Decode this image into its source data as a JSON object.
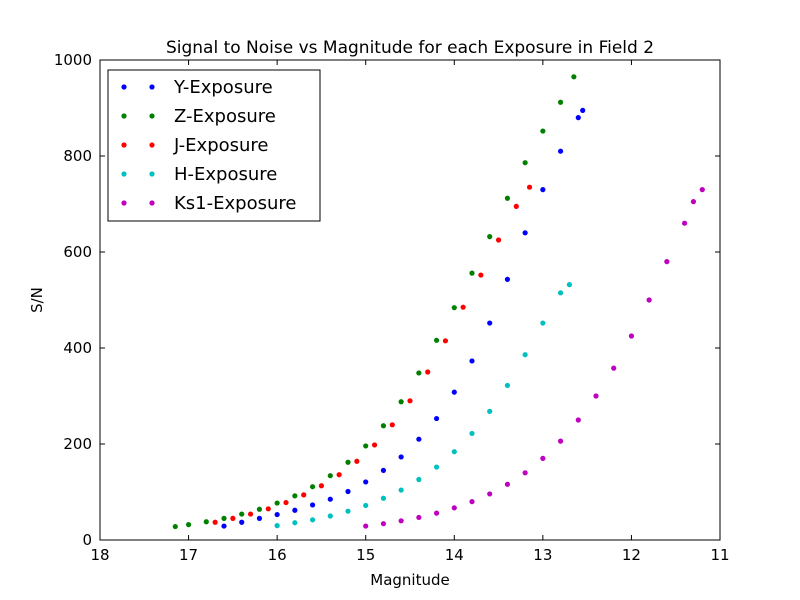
{
  "chart_data": {
    "type": "scatter",
    "title": "Signal to Noise vs Magnitude for each Exposure in Field 2",
    "xlabel": "Magnitude",
    "ylabel": "S/N",
    "xlim": [
      18,
      11
    ],
    "ylim": [
      0,
      1000
    ],
    "x_inverted": true,
    "grid": false,
    "legend_position": "top-left",
    "x_ticks": [
      18,
      17,
      16,
      15,
      14,
      13,
      12,
      11
    ],
    "y_ticks": [
      0,
      200,
      400,
      600,
      800,
      1000
    ],
    "series": [
      {
        "name": "Y-Exposure",
        "color": "#0000ff",
        "x": [
          16.6,
          16.4,
          16.2,
          16.0,
          15.8,
          15.6,
          15.4,
          15.2,
          15.0,
          14.8,
          14.6,
          14.4,
          14.2,
          14.0,
          13.8,
          13.6,
          13.4,
          13.2,
          13.0,
          12.8,
          12.6,
          12.55
        ],
        "y": [
          29,
          37,
          45,
          53,
          62,
          73,
          85,
          101,
          121,
          145,
          173,
          210,
          253,
          308,
          373,
          452,
          543,
          640,
          730,
          810,
          880,
          895
        ]
      },
      {
        "name": "Z-Exposure",
        "color": "#008000",
        "x": [
          17.15,
          17.0,
          16.8,
          16.6,
          16.4,
          16.2,
          16.0,
          15.8,
          15.6,
          15.4,
          15.2,
          15.0,
          14.8,
          14.6,
          14.4,
          14.2,
          14.0,
          13.8,
          13.6,
          13.4,
          13.2,
          13.0,
          12.8,
          12.65
        ],
        "y": [
          28,
          32,
          38,
          45,
          54,
          64,
          77,
          92,
          111,
          134,
          162,
          196,
          238,
          288,
          348,
          416,
          484,
          556,
          632,
          712,
          786,
          852,
          912,
          965
        ]
      },
      {
        "name": "J-Exposure",
        "color": "#ff0000",
        "x": [
          16.7,
          16.5,
          16.3,
          16.1,
          15.9,
          15.7,
          15.5,
          15.3,
          15.1,
          14.9,
          14.7,
          14.5,
          14.3,
          14.1,
          13.9,
          13.7,
          13.5,
          13.3,
          13.15
        ],
        "y": [
          37,
          45,
          54,
          65,
          78,
          94,
          113,
          136,
          164,
          198,
          240,
          290,
          350,
          415,
          485,
          552,
          625,
          695,
          735
        ]
      },
      {
        "name": "H-Exposure",
        "color": "#00bfbf",
        "x": [
          16.0,
          15.8,
          15.6,
          15.4,
          15.2,
          15.0,
          14.8,
          14.6,
          14.4,
          14.2,
          14.0,
          13.8,
          13.6,
          13.4,
          13.2,
          13.0,
          12.8,
          12.7
        ],
        "y": [
          30,
          36,
          42,
          50,
          60,
          72,
          87,
          104,
          126,
          152,
          184,
          222,
          268,
          322,
          386,
          452,
          515,
          532
        ]
      },
      {
        "name": "Ks1-Exposure",
        "color": "#bf00bf",
        "x": [
          15.0,
          14.8,
          14.6,
          14.4,
          14.2,
          14.0,
          13.8,
          13.6,
          13.4,
          13.2,
          13.0,
          12.8,
          12.6,
          12.4,
          12.2,
          12.0,
          11.8,
          11.6,
          11.4,
          11.3,
          11.2
        ],
        "y": [
          29,
          34,
          40,
          47,
          56,
          67,
          80,
          96,
          116,
          140,
          170,
          206,
          250,
          300,
          358,
          425,
          500,
          580,
          660,
          705,
          730
        ]
      }
    ]
  }
}
